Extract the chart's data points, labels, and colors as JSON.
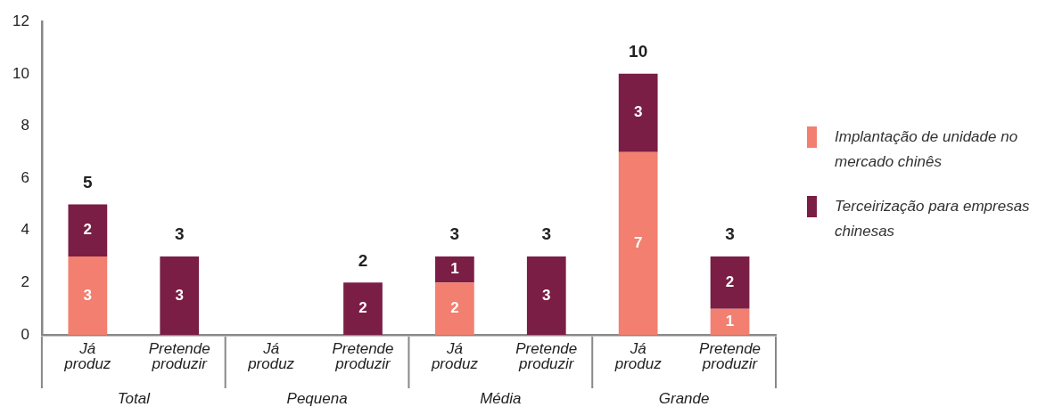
{
  "chart_data": {
    "type": "bar",
    "stacked": true,
    "data_labels": true,
    "legend": "right",
    "grid": false,
    "categories": [
      "Já produz",
      "Pretende produzir",
      "Já produz",
      "Pretende produzir",
      "Já produz",
      "Pretende produzir",
      "Já produz",
      "Pretende produzir"
    ],
    "series": [
      {
        "name": "Implantação de unidade no mercado chinês",
        "color": "#f27f6f",
        "values": [
          3,
          null,
          null,
          null,
          2,
          null,
          7,
          1
        ]
      },
      {
        "name": "Terceirização para empresas chinesas",
        "color": "#7a1e45",
        "values": [
          2,
          3,
          null,
          2,
          1,
          3,
          3,
          2
        ]
      }
    ],
    "totals": [
      "5",
      "3",
      null,
      "2",
      "3",
      "3",
      "10",
      "3"
    ],
    "annotations": [
      "Total",
      "Pequena",
      "Média",
      "Grande"
    ],
    "ylim": [
      0,
      12
    ],
    "yticks": [
      0,
      2,
      4,
      6,
      8,
      10,
      12
    ]
  }
}
